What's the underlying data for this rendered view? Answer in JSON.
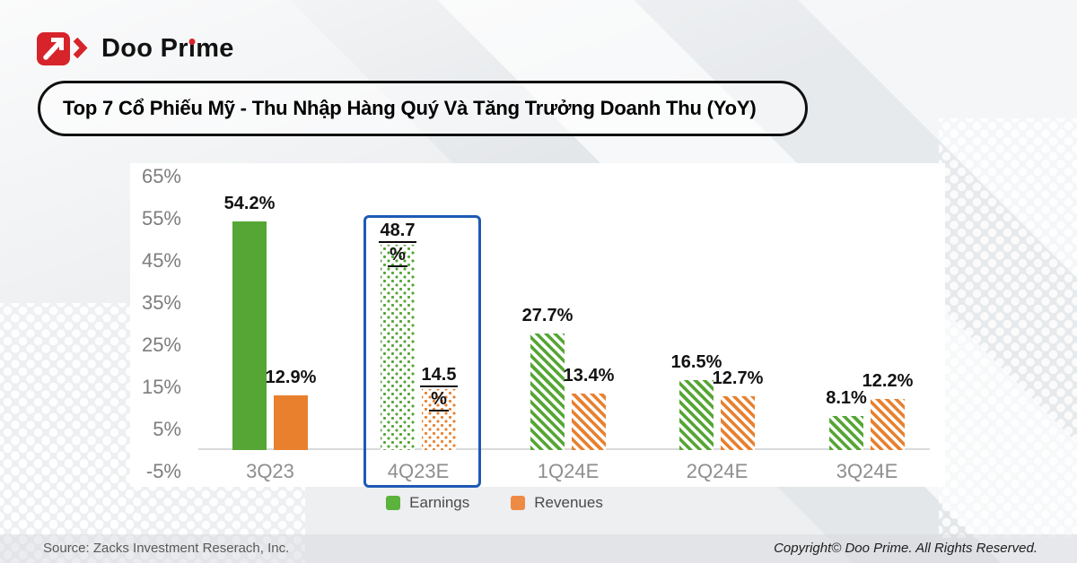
{
  "brand": {
    "name": "Doo Prime",
    "p1": "Doo Pr",
    "dotless_i": "ı",
    "p2": "me"
  },
  "title": "Top 7 Cổ Phiếu Mỹ - Thu Nhập Hàng Quý Và Tăng Trưởng Doanh Thu (YoY)",
  "colors": {
    "brand_red": "#d7242b",
    "earnings_green": "#55a634",
    "revenues_orange": "#e8802e",
    "highlight_blue": "#1e5ab4",
    "card_white": "#ffffff",
    "axis_gray": "#8e8e8e"
  },
  "chart_data": {
    "type": "bar",
    "title": "Top 7 Cổ Phiếu Mỹ - Thu Nhập Hàng Quý Và Tăng Trưởng Doanh Thu (YoY)",
    "categories": [
      "3Q23",
      "4Q23E",
      "1Q24E",
      "2Q24E",
      "3Q24E"
    ],
    "series": [
      {
        "name": "Earnings",
        "color": "#55a634",
        "values": [
          54.2,
          48.7,
          27.7,
          16.5,
          8.1
        ],
        "labels": [
          "54.2%",
          "48.7%",
          "27.7%",
          "16.5%",
          "8.1%"
        ]
      },
      {
        "name": "Revenues",
        "color": "#e8802e",
        "values": [
          12.9,
          14.5,
          13.4,
          12.7,
          12.2
        ],
        "labels": [
          "12.9%",
          "14.5%",
          "13.4%",
          "12.7%",
          "12.2%"
        ]
      }
    ],
    "y_ticks": [
      "65%",
      "55%",
      "45%",
      "35%",
      "25%",
      "15%",
      "5%",
      "-5%"
    ],
    "y_tick_values": [
      65,
      55,
      45,
      35,
      25,
      15,
      5,
      -5
    ],
    "ylim": [
      -5,
      65
    ],
    "grid": false,
    "legend_position": "bottom",
    "highlight_index": 1,
    "highlight_note": "4Q23E group outlined in blue with dotted-fill bars and underlined labels",
    "bar_fill_styles": [
      "solid",
      "dots",
      "hatch",
      "hatch",
      "hatch"
    ]
  },
  "legend": {
    "items": [
      {
        "label": "Earnings",
        "color": "#5bb23c"
      },
      {
        "label": "Revenues",
        "color": "#ef8a45"
      }
    ]
  },
  "footer": {
    "source": "Source: Zacks Investment Reserach, Inc.",
    "copyright": "Copyright© Doo Prime. All Rights Reserved."
  }
}
